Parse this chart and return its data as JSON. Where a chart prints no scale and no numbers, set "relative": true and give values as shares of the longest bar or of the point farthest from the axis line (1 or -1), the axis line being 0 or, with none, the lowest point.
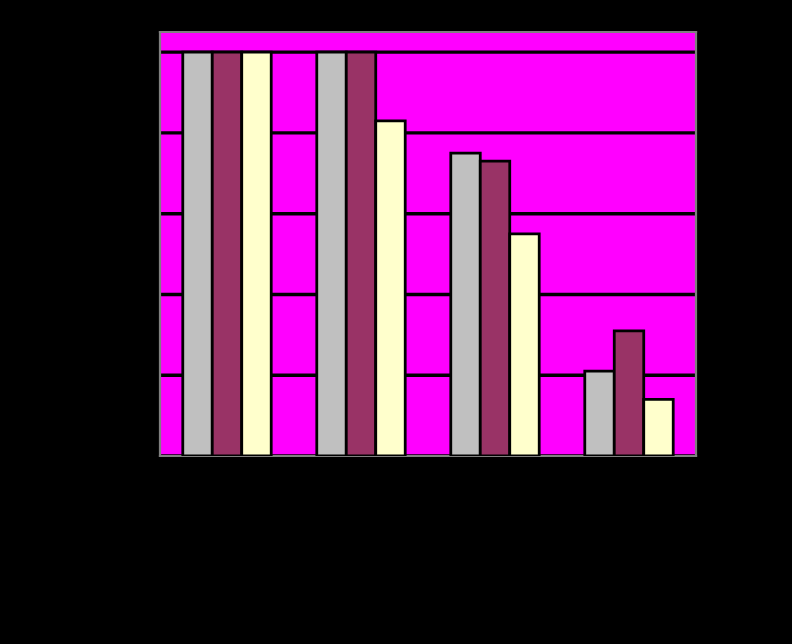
{
  "chart_data": {
    "type": "bar",
    "relative": true,
    "categories": [
      null,
      null,
      null,
      null
    ],
    "series": [
      {
        "color": "#c0c0c0",
        "values": [
          1,
          1,
          0.75,
          0.21
        ]
      },
      {
        "color": "#993366",
        "values": [
          1,
          1,
          0.73,
          0.31
        ]
      },
      {
        "color": "#ffffcc",
        "values": [
          1,
          0.83,
          0.55,
          0.14
        ]
      }
    ],
    "grid": "y"
  }
}
